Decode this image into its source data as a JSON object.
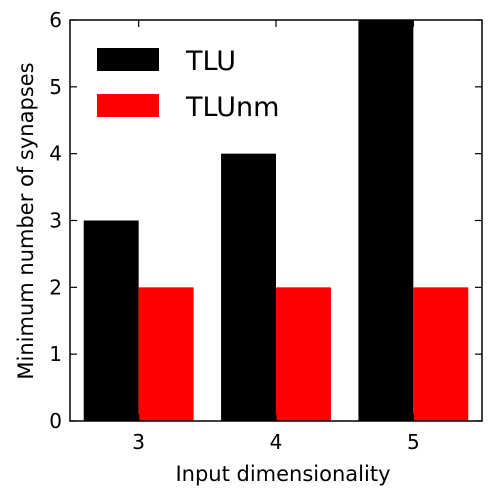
{
  "chart_data": {
    "type": "bar",
    "categories": [
      "3",
      "4",
      "5"
    ],
    "series": [
      {
        "name": "TLU",
        "values": [
          3,
          4,
          6
        ],
        "color": "#000000"
      },
      {
        "name": "TLUnm",
        "values": [
          2,
          2,
          2
        ],
        "color": "#ff0000"
      }
    ],
    "xlabel": "Input dimensionality",
    "ylabel": "Minimum number of synapses",
    "ylim": [
      0,
      6
    ],
    "yticks": [
      "0",
      "1",
      "2",
      "3",
      "4",
      "5",
      "6"
    ],
    "grid": false,
    "legend_position": "top-left"
  }
}
